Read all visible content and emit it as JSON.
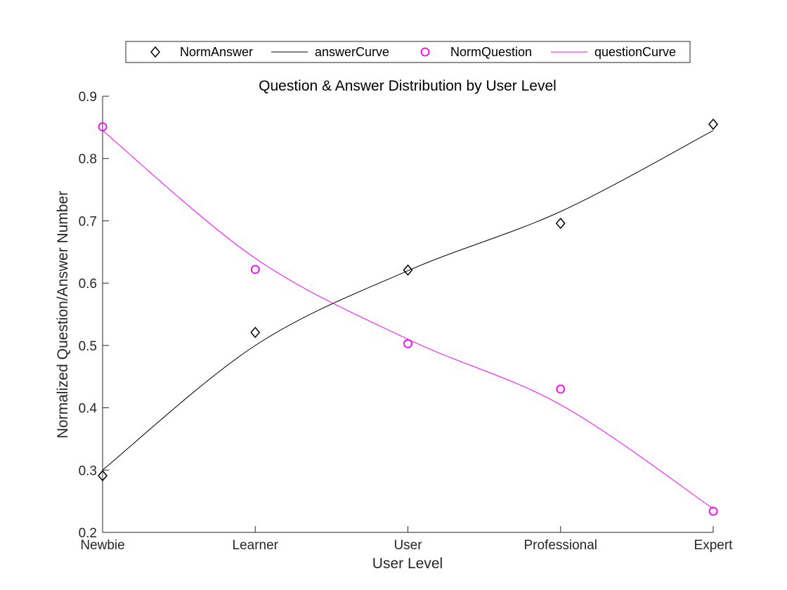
{
  "chart_data": {
    "type": "line",
    "title": "Question & Answer Distribution by User Level",
    "xlabel": "User Level",
    "ylabel": "Normalized Question/Answer Number",
    "categories": [
      "Newbie",
      "Learner",
      "User",
      "Professional",
      "Expert"
    ],
    "ylim": [
      0.2,
      0.9
    ],
    "yticks": [
      "0.2",
      "0.3",
      "0.4",
      "0.5",
      "0.6",
      "0.7",
      "0.8",
      "0.9"
    ],
    "grid": false,
    "legend_position": "top",
    "series": [
      {
        "name": "NormAnswer",
        "kind": "markers",
        "marker": "diamond",
        "color": "#000000",
        "values": [
          0.291,
          0.521,
          0.621,
          0.696,
          0.855
        ]
      },
      {
        "name": "answerCurve",
        "kind": "line",
        "color": "#000000",
        "values": [
          0.3,
          0.5,
          0.62,
          0.715,
          0.845
        ]
      },
      {
        "name": "NormQuestion",
        "kind": "markers",
        "marker": "circle",
        "color": "#ff00ff",
        "values": [
          0.851,
          0.622,
          0.503,
          0.43,
          0.234
        ]
      },
      {
        "name": "questionCurve",
        "kind": "line",
        "color": "#ff00ff",
        "values": [
          0.845,
          0.64,
          0.51,
          0.405,
          0.238
        ]
      }
    ]
  }
}
